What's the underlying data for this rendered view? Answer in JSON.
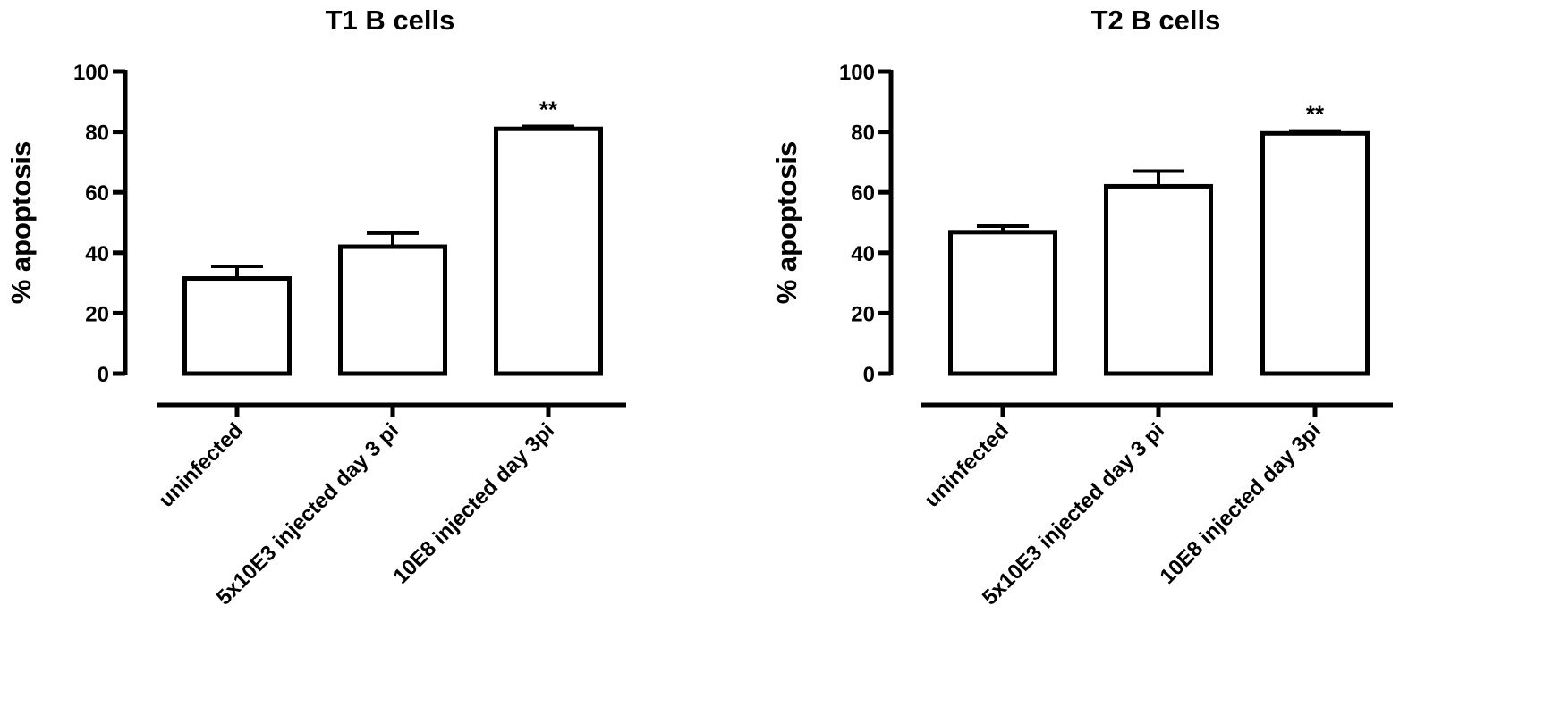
{
  "chart_data": [
    {
      "type": "bar",
      "title": "T1 B cells",
      "xlabel": "",
      "ylabel": "% apoptosis",
      "ylim": [
        0,
        100
      ],
      "yticks": [
        "0",
        "20",
        "40",
        "60",
        "80",
        "100"
      ],
      "categories": [
        "uninfected",
        "5x10E3 injected day 3 pi",
        "10E8 injected day 3pi"
      ],
      "values": [
        31.5,
        42,
        81
      ],
      "errors": [
        4,
        4.5,
        0.8
      ],
      "annotations": [
        "",
        "",
        "**"
      ],
      "grid": false,
      "bar_fill": "#ffffff",
      "bar_edge": "#000000"
    },
    {
      "type": "bar",
      "title": "T2 B cells",
      "xlabel": "",
      "ylabel": "% apoptosis",
      "ylim": [
        0,
        100
      ],
      "yticks": [
        "0",
        "20",
        "40",
        "60",
        "80",
        "100"
      ],
      "categories": [
        "uninfected",
        "5x10E3 injected day 3 pi",
        "10E8 injected day 3pi"
      ],
      "values": [
        46.8,
        62,
        79.5
      ],
      "errors": [
        2,
        5,
        0.8
      ],
      "annotations": [
        "",
        "",
        "**"
      ],
      "grid": false,
      "bar_fill": "#ffffff",
      "bar_edge": "#000000"
    }
  ]
}
